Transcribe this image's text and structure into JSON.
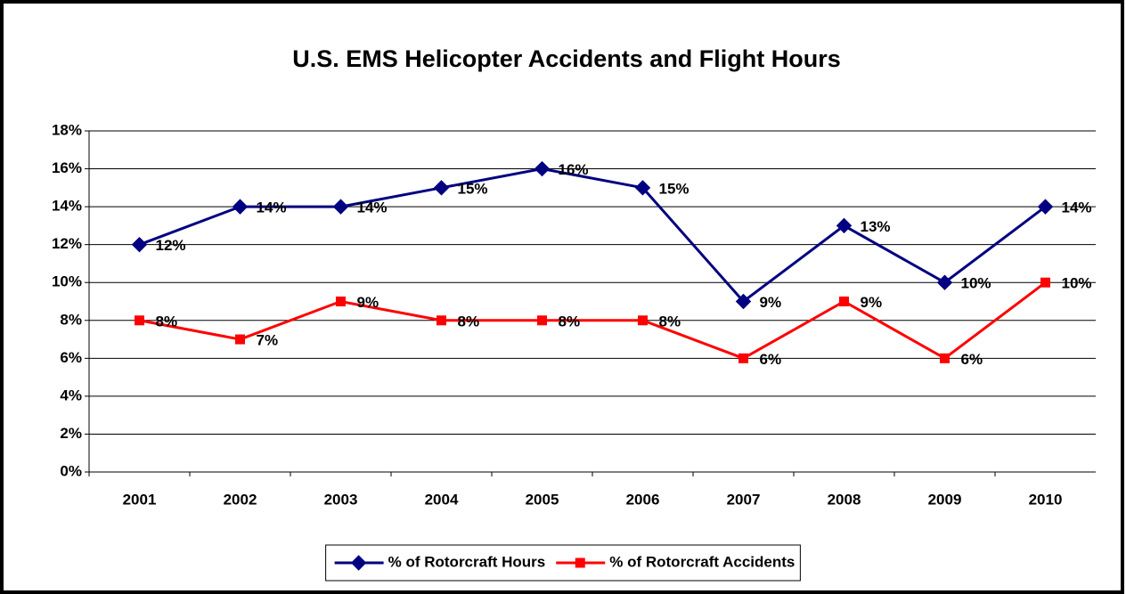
{
  "chart_data": {
    "type": "line",
    "title": "U.S. EMS Helicopter Accidents and Flight Hours",
    "categories": [
      "2001",
      "2002",
      "2003",
      "2004",
      "2005",
      "2006",
      "2007",
      "2008",
      "2009",
      "2010"
    ],
    "series": [
      {
        "name": "% of Rotorcraft Hours",
        "color": "#000080",
        "marker": "diamond",
        "values": [
          12,
          14,
          14,
          15,
          16,
          15,
          9,
          13,
          10,
          14
        ],
        "value_labels": [
          "12%",
          "14%",
          "14%",
          "15%",
          "16%",
          "15%",
          "9%",
          "13%",
          "10%",
          "14%"
        ]
      },
      {
        "name": "% of Rotorcraft Accidents",
        "color": "#ff0000",
        "marker": "square",
        "values": [
          8,
          7,
          9,
          8,
          8,
          8,
          6,
          9,
          6,
          10
        ],
        "value_labels": [
          "8%",
          "7%",
          "9%",
          "8%",
          "8%",
          "8%",
          "6%",
          "9%",
          "6%",
          "10%"
        ]
      }
    ],
    "ylim": [
      0,
      18
    ],
    "yticks": [
      {
        "value": 0,
        "label": "0%"
      },
      {
        "value": 2,
        "label": "2%"
      },
      {
        "value": 4,
        "label": "4%"
      },
      {
        "value": 6,
        "label": "6%"
      },
      {
        "value": 8,
        "label": "8%"
      },
      {
        "value": 10,
        "label": "10%"
      },
      {
        "value": 12,
        "label": "12%"
      },
      {
        "value": 14,
        "label": "14%"
      },
      {
        "value": 16,
        "label": "16%"
      },
      {
        "value": 18,
        "label": "18%"
      }
    ],
    "grid": true,
    "legend": "bottom"
  }
}
